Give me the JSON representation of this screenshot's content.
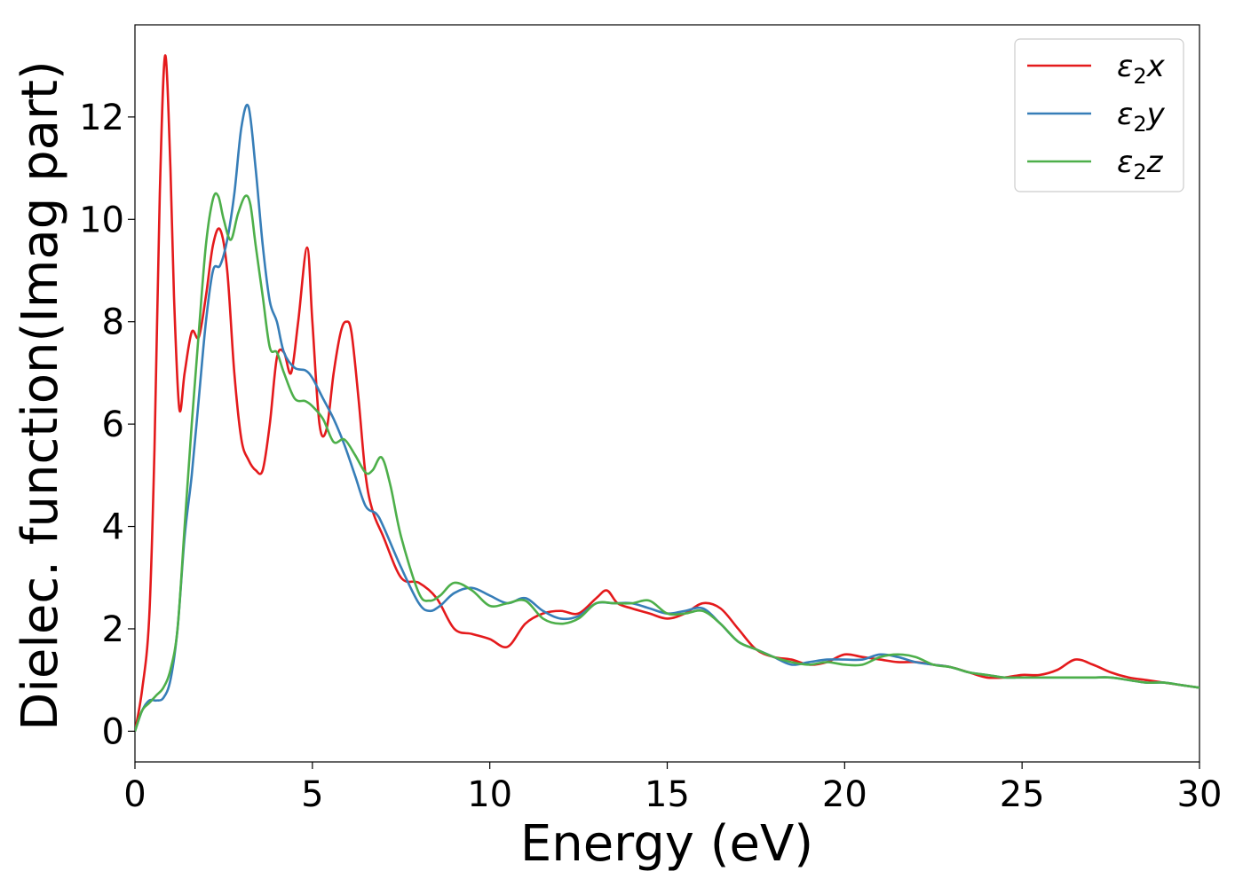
{
  "chart_data": {
    "type": "line",
    "xlabel": "Energy (eV)",
    "ylabel": "Dielec. function(Imag part)",
    "xlim": [
      0,
      30
    ],
    "ylim": [
      -0.6,
      13.8
    ],
    "xticks": [
      0,
      5,
      10,
      15,
      20,
      25,
      30
    ],
    "yticks": [
      0,
      2,
      4,
      6,
      8,
      10,
      12
    ],
    "grid": false,
    "legend_position": "top-right",
    "series": [
      {
        "name": "ε₂x",
        "legend_base": "ε",
        "legend_sub": "2",
        "legend_suffix": "x",
        "color": "#e41a1c",
        "x": [
          0,
          0.2,
          0.4,
          0.55,
          0.7,
          0.85,
          1.0,
          1.1,
          1.25,
          1.4,
          1.6,
          1.8,
          2.0,
          2.2,
          2.4,
          2.6,
          2.8,
          3.0,
          3.2,
          3.4,
          3.6,
          3.8,
          4.0,
          4.2,
          4.4,
          4.6,
          4.85,
          5.0,
          5.2,
          5.4,
          5.6,
          5.8,
          5.95,
          6.1,
          6.3,
          6.5,
          6.7,
          7.0,
          7.5,
          8.0,
          8.5,
          9.0,
          9.5,
          10.0,
          10.5,
          11.0,
          11.5,
          12.0,
          12.5,
          13.0,
          13.3,
          13.6,
          14.0,
          14.5,
          15.0,
          15.5,
          16.0,
          16.5,
          17.0,
          17.5,
          18.0,
          18.5,
          19.0,
          19.5,
          20.0,
          20.5,
          21.0,
          21.5,
          22.0,
          22.5,
          23.0,
          23.5,
          24.0,
          24.5,
          25.0,
          25.5,
          26.0,
          26.5,
          27.0,
          27.5,
          28.0,
          28.5,
          29.0,
          29.5,
          30.0
        ],
        "y": [
          0.0,
          0.8,
          2.2,
          5.5,
          10.5,
          13.2,
          11.0,
          8.5,
          6.3,
          7.0,
          7.8,
          7.7,
          8.5,
          9.5,
          9.8,
          9.0,
          7.0,
          5.7,
          5.3,
          5.1,
          5.1,
          6.0,
          7.3,
          7.4,
          7.0,
          8.0,
          9.45,
          8.0,
          6.0,
          5.9,
          7.0,
          7.8,
          8.0,
          7.8,
          6.5,
          5.0,
          4.3,
          3.8,
          3.0,
          2.9,
          2.6,
          2.0,
          1.9,
          1.8,
          1.65,
          2.1,
          2.3,
          2.35,
          2.3,
          2.6,
          2.75,
          2.5,
          2.4,
          2.3,
          2.2,
          2.3,
          2.5,
          2.4,
          2.0,
          1.6,
          1.45,
          1.4,
          1.3,
          1.35,
          1.5,
          1.45,
          1.4,
          1.35,
          1.35,
          1.3,
          1.25,
          1.15,
          1.05,
          1.05,
          1.1,
          1.1,
          1.2,
          1.4,
          1.3,
          1.15,
          1.05,
          1.0,
          0.95,
          0.9,
          0.85
        ]
      },
      {
        "name": "ε₂y",
        "legend_base": "ε",
        "legend_sub": "2",
        "legend_suffix": "y",
        "color": "#377eb8",
        "x": [
          0,
          0.2,
          0.4,
          0.6,
          0.8,
          1.0,
          1.2,
          1.4,
          1.6,
          1.8,
          2.0,
          2.2,
          2.4,
          2.6,
          2.8,
          3.0,
          3.2,
          3.4,
          3.6,
          3.8,
          4.0,
          4.2,
          4.5,
          4.8,
          5.0,
          5.3,
          5.6,
          5.9,
          6.2,
          6.5,
          6.8,
          7.0,
          7.5,
          8.0,
          8.3,
          8.6,
          9.0,
          9.5,
          10.0,
          10.5,
          11.0,
          11.5,
          12.0,
          12.5,
          13.0,
          13.5,
          14.0,
          14.5,
          15.0,
          15.5,
          16.0,
          16.5,
          17.0,
          17.5,
          18.0,
          18.5,
          19.0,
          19.5,
          20.0,
          20.5,
          21.0,
          21.5,
          22.0,
          22.5,
          23.0,
          23.5,
          24.0,
          24.5,
          25.0,
          25.5,
          26.0,
          26.5,
          27.0,
          27.5,
          28.0,
          28.5,
          29.0,
          29.5,
          30.0
        ],
        "y": [
          0.0,
          0.4,
          0.6,
          0.6,
          0.65,
          1.0,
          2.0,
          3.8,
          5.0,
          6.5,
          8.0,
          9.0,
          9.1,
          9.6,
          10.5,
          11.8,
          12.2,
          11.0,
          9.5,
          8.4,
          8.0,
          7.4,
          7.1,
          7.05,
          6.9,
          6.5,
          6.1,
          5.6,
          5.0,
          4.4,
          4.25,
          4.0,
          3.2,
          2.5,
          2.35,
          2.45,
          2.7,
          2.8,
          2.65,
          2.5,
          2.6,
          2.35,
          2.2,
          2.25,
          2.5,
          2.5,
          2.5,
          2.4,
          2.3,
          2.35,
          2.4,
          2.1,
          1.75,
          1.6,
          1.45,
          1.3,
          1.35,
          1.4,
          1.4,
          1.4,
          1.5,
          1.45,
          1.35,
          1.3,
          1.25,
          1.15,
          1.1,
          1.05,
          1.05,
          1.05,
          1.05,
          1.05,
          1.05,
          1.05,
          1.0,
          0.95,
          0.95,
          0.9,
          0.85
        ]
      },
      {
        "name": "ε₂z",
        "legend_base": "ε",
        "legend_sub": "2",
        "legend_suffix": "z",
        "color": "#4daf4a",
        "x": [
          0,
          0.2,
          0.4,
          0.6,
          0.8,
          1.0,
          1.2,
          1.4,
          1.6,
          1.8,
          2.0,
          2.2,
          2.35,
          2.5,
          2.7,
          2.9,
          3.1,
          3.25,
          3.4,
          3.6,
          3.8,
          4.0,
          4.2,
          4.5,
          4.8,
          5.0,
          5.3,
          5.6,
          5.9,
          6.2,
          6.5,
          6.7,
          6.95,
          7.2,
          7.5,
          8.0,
          8.3,
          8.6,
          9.0,
          9.5,
          10.0,
          10.5,
          11.0,
          11.5,
          12.0,
          12.5,
          13.0,
          13.5,
          14.0,
          14.5,
          15.0,
          15.5,
          16.0,
          16.5,
          17.0,
          17.5,
          18.0,
          18.5,
          19.0,
          19.5,
          20.0,
          20.5,
          21.0,
          21.5,
          22.0,
          22.5,
          23.0,
          23.5,
          24.0,
          24.5,
          25.0,
          25.5,
          26.0,
          26.5,
          27.0,
          27.5,
          28.0,
          28.5,
          29.0,
          29.5,
          30.0
        ],
        "y": [
          0.0,
          0.4,
          0.55,
          0.7,
          0.85,
          1.2,
          2.0,
          4.0,
          6.0,
          7.8,
          9.5,
          10.4,
          10.45,
          10.0,
          9.6,
          10.1,
          10.45,
          10.3,
          9.5,
          8.5,
          7.5,
          7.4,
          7.0,
          6.5,
          6.45,
          6.35,
          6.1,
          5.65,
          5.7,
          5.4,
          5.05,
          5.1,
          5.35,
          4.8,
          3.8,
          2.7,
          2.55,
          2.65,
          2.9,
          2.75,
          2.45,
          2.5,
          2.55,
          2.2,
          2.1,
          2.2,
          2.5,
          2.5,
          2.5,
          2.55,
          2.3,
          2.3,
          2.35,
          2.1,
          1.75,
          1.6,
          1.45,
          1.35,
          1.3,
          1.35,
          1.3,
          1.3,
          1.45,
          1.5,
          1.45,
          1.3,
          1.25,
          1.15,
          1.1,
          1.05,
          1.05,
          1.05,
          1.05,
          1.05,
          1.05,
          1.05,
          1.0,
          0.95,
          0.95,
          0.9,
          0.85
        ]
      }
    ]
  }
}
